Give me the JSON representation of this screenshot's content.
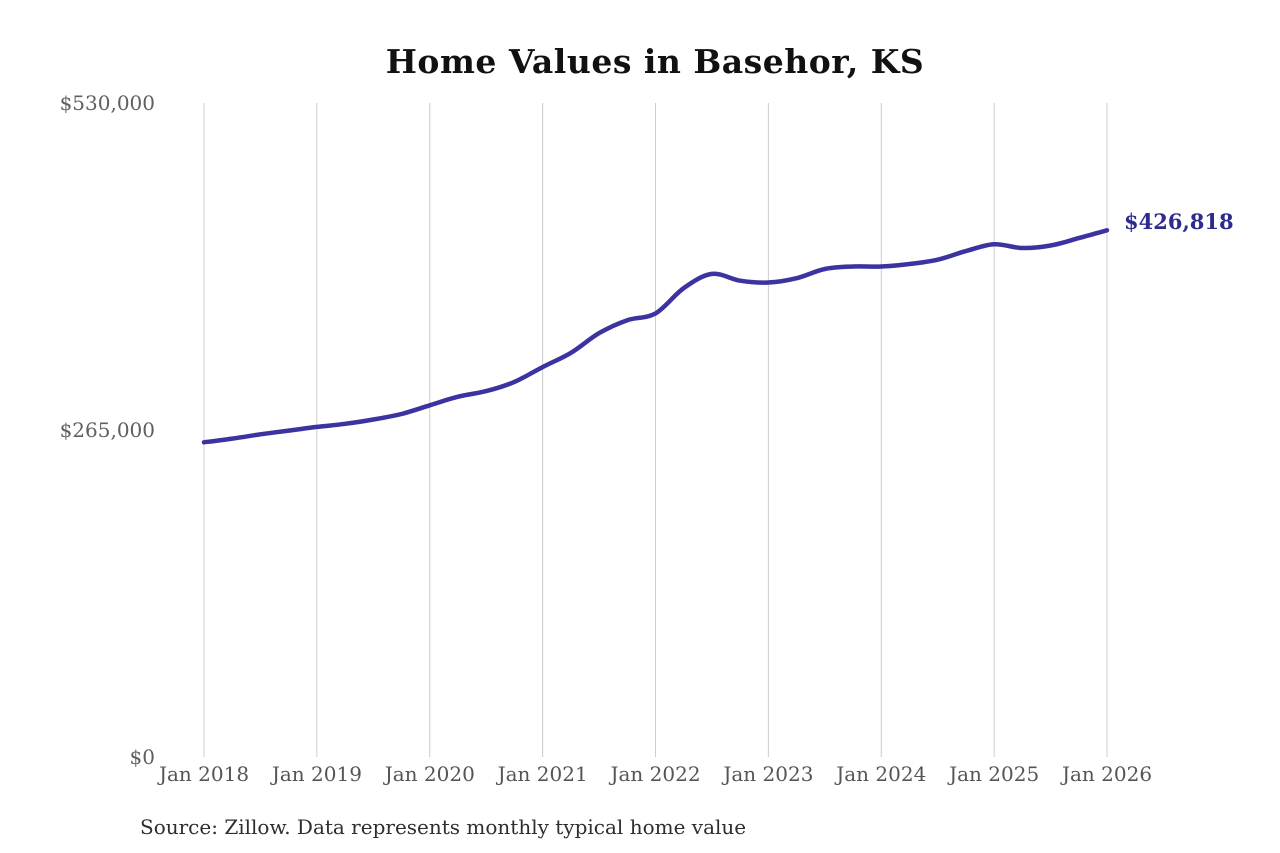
{
  "source_note": "Source: Zillow. Data represents monthly typical home value",
  "chart_data": {
    "type": "line",
    "title": "Home Values in Basehor, KS",
    "series_name": "Monthly typical home value",
    "end_label": "$426,818",
    "end_value": 426818,
    "xlabel": "",
    "ylabel": "",
    "xlim": [
      2018,
      2026
    ],
    "ylim": [
      0,
      530000
    ],
    "grid": "vertical-only",
    "legend": "none",
    "x_ticks": [
      {
        "year": 2018,
        "label": "Jan 2018"
      },
      {
        "year": 2019,
        "label": "Jan 2019"
      },
      {
        "year": 2020,
        "label": "Jan 2020"
      },
      {
        "year": 2021,
        "label": "Jan 2021"
      },
      {
        "year": 2022,
        "label": "Jan 2022"
      },
      {
        "year": 2023,
        "label": "Jan 2023"
      },
      {
        "year": 2024,
        "label": "Jan 2024"
      },
      {
        "year": 2025,
        "label": "Jan 2025"
      },
      {
        "year": 2026,
        "label": "Jan 2026"
      }
    ],
    "y_ticks": [
      {
        "value": 0,
        "label": "$0"
      },
      {
        "value": 265000,
        "label": "$265,000"
      },
      {
        "value": 530000,
        "label": "$530,000"
      }
    ],
    "x": [
      2018.0,
      2018.25,
      2018.5,
      2018.75,
      2019.0,
      2019.25,
      2019.5,
      2019.75,
      2020.0,
      2020.25,
      2020.5,
      2020.75,
      2021.0,
      2021.25,
      2021.5,
      2021.75,
      2022.0,
      2022.25,
      2022.5,
      2022.75,
      2023.0,
      2023.25,
      2023.5,
      2023.75,
      2024.0,
      2024.25,
      2024.5,
      2024.75,
      2025.0,
      2025.25,
      2025.5,
      2025.75,
      2026.0
    ],
    "values": [
      255000,
      258000,
      261500,
      264500,
      267500,
      270000,
      273500,
      278000,
      285000,
      292000,
      296500,
      304000,
      316000,
      327500,
      343500,
      354000,
      359500,
      380000,
      391500,
      386000,
      384500,
      388000,
      395500,
      397500,
      397500,
      399500,
      403000,
      410000,
      415500,
      412500,
      414500,
      420500,
      426818
    ],
    "colors": {
      "line": "#3b33a0",
      "end_label": "#2d2b8e",
      "gridline": "#cccccc",
      "axis_text": "#5f5f5f",
      "title_text": "#111111",
      "source_text": "#2e2e2e",
      "background": "#ffffff"
    }
  }
}
